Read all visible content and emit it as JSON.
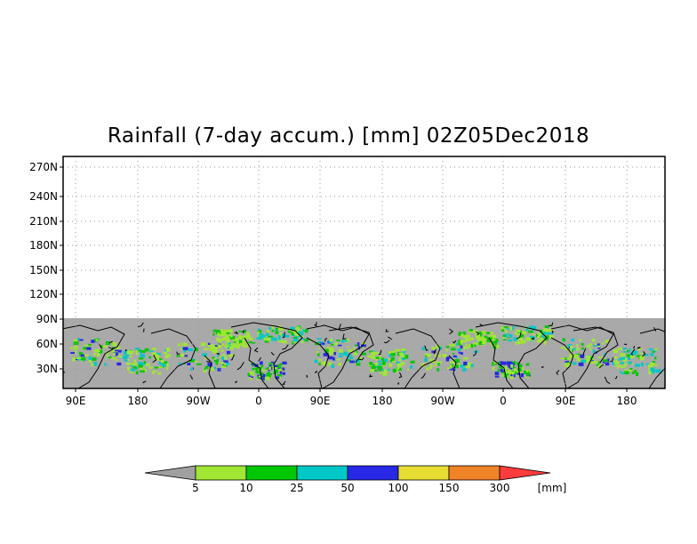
{
  "title": "Rainfall (7-day accum.) [mm] 02Z05Dec2018",
  "map": {
    "y_ticks": [
      "270N",
      "240N",
      "210N",
      "180N",
      "150N",
      "120N",
      "90N",
      "60N",
      "30N"
    ],
    "x_ticks": [
      "90E",
      "180",
      "90W",
      "0",
      "90E",
      "180",
      "90W",
      "0",
      "90E",
      "180"
    ],
    "no_data_color": "#a9a9a9",
    "land_outline_color": "#000000"
  },
  "colorbar": {
    "labels": [
      "5",
      "10",
      "25",
      "50",
      "100",
      "150",
      "300"
    ],
    "unit": "[mm]",
    "colors": [
      "#a0a0a0",
      "#a0e632",
      "#00c800",
      "#00c8c8",
      "#2828e6",
      "#e6dc32",
      "#f08228",
      "#fa3c3c"
    ]
  }
}
